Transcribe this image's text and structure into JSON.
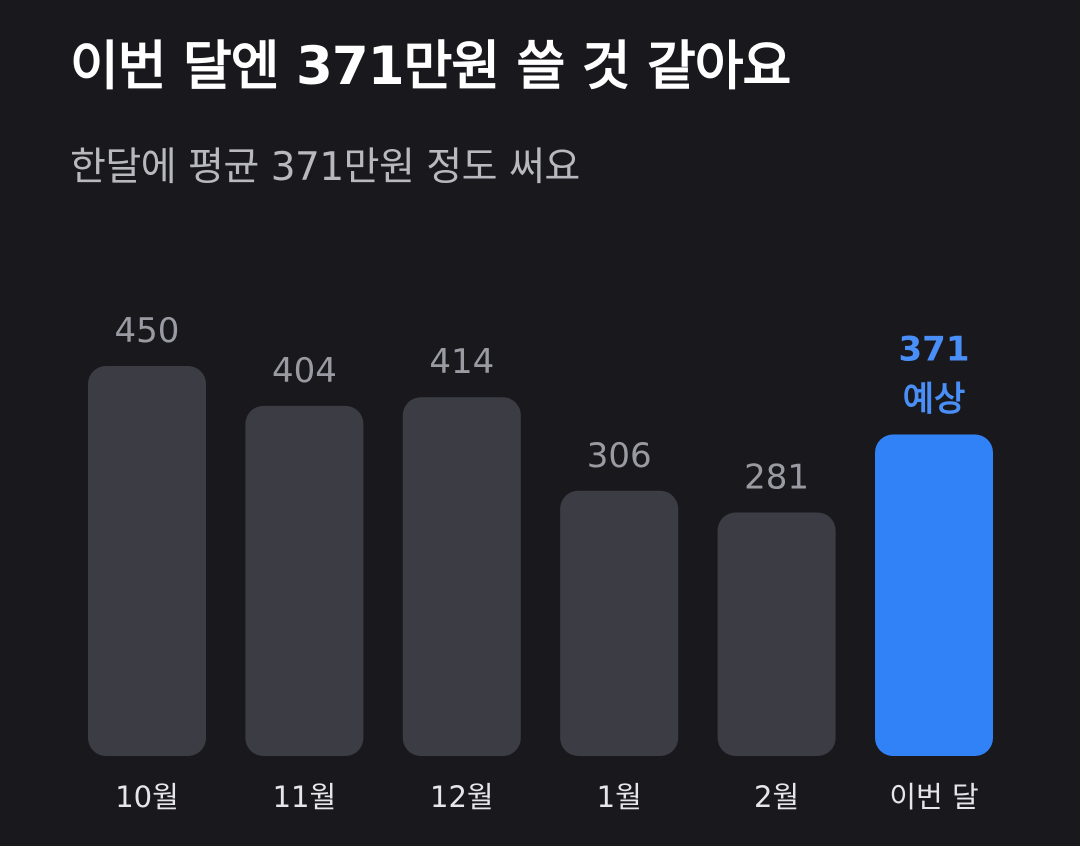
{
  "header": {
    "title": "이번 달엔 371만원 쓸 것 같아요",
    "subtitle": "한달에 평균 371만원 정도 써요"
  },
  "colors": {
    "background": "#19191d",
    "bar": "#3c3c45",
    "highlight_bar": "#3182f6",
    "value_label": "#9a9aa3",
    "highlight_label": "#4a8ff7",
    "category_label": "#e6e6ea"
  },
  "chart_data": {
    "type": "bar",
    "categories": [
      "10월",
      "11월",
      "12월",
      "1월",
      "2월",
      "이번 달"
    ],
    "values": [
      450,
      404,
      414,
      306,
      281,
      371
    ],
    "value_labels": [
      "450",
      "404",
      "414",
      "306",
      "281",
      "371"
    ],
    "highlight_index": 5,
    "highlight_note": "예상",
    "title": "",
    "xlabel": "",
    "ylabel": "",
    "grid": false,
    "legend": "none"
  }
}
